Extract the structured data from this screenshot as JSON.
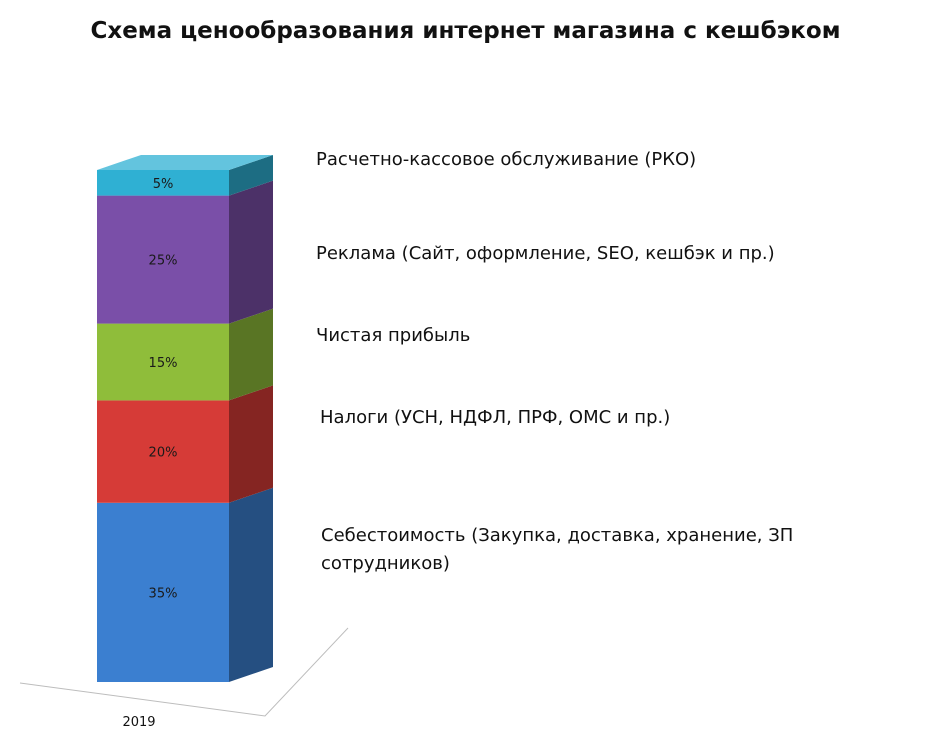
{
  "chart_data": {
    "type": "bar",
    "stacked": true,
    "three_d": true,
    "title": "Схема ценообразования интернет магазина с кешбэком",
    "categories": [
      "2019"
    ],
    "ylim": [
      0,
      100
    ],
    "grid": false,
    "series": [
      {
        "name": "Себестоимость (Закупка, доставка, хранение, ЗП сотрудников)",
        "values": [
          35
        ],
        "label": "35%",
        "color": "#3b7fd0"
      },
      {
        "name": "Налоги (УСН, НДФЛ, ПРФ, ОМС и пр.)",
        "values": [
          20
        ],
        "label": "20%",
        "color": "#d63b37"
      },
      {
        "name": "Чистая прибыль",
        "values": [
          15
        ],
        "label": "15%",
        "color": "#8fbd3a"
      },
      {
        "name": "Реклама (Сайт, оформление,  SEO, кешбэк и пр.)",
        "values": [
          25
        ],
        "label": "25%",
        "color": "#7a4fa8"
      },
      {
        "name": "Расчетно-кассовое обслуживание  (РКО)",
        "values": [
          5
        ],
        "label": "5%",
        "color": "#2fb0d3"
      }
    ]
  }
}
